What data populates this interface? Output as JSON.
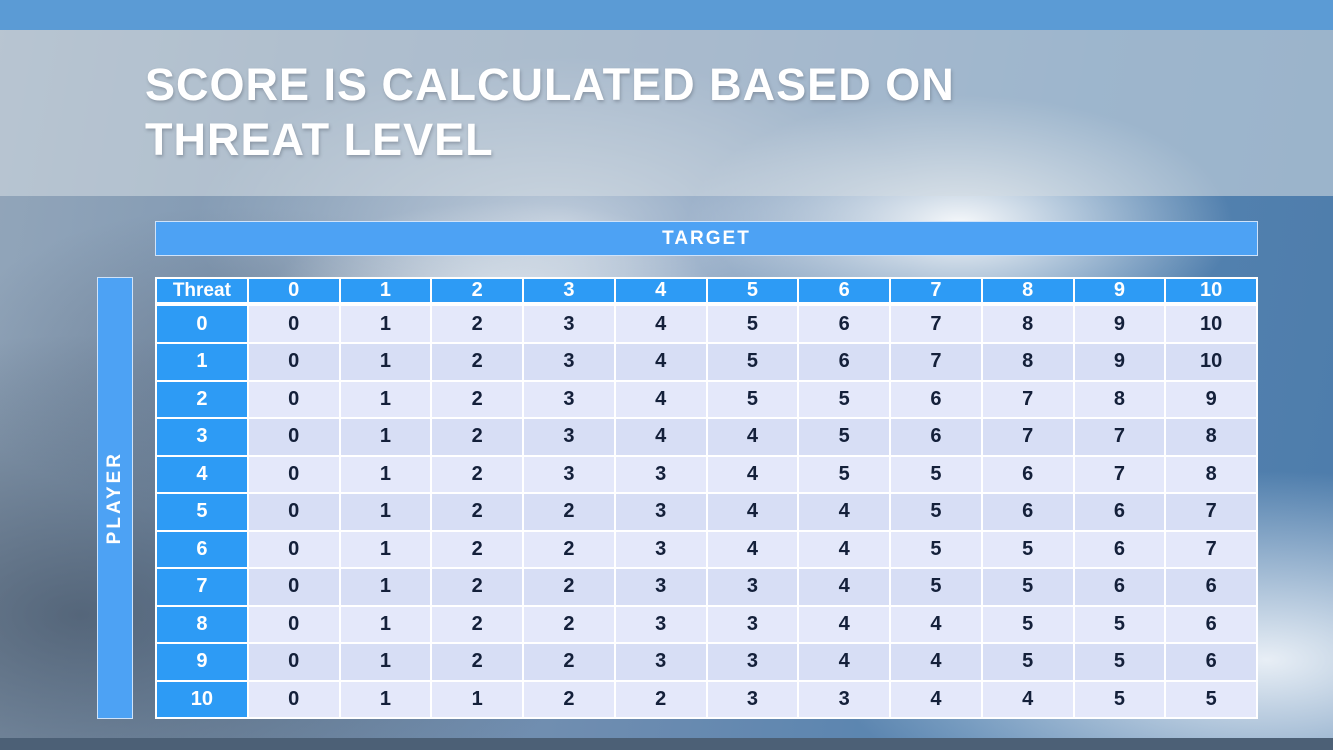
{
  "title": {
    "line1": "SCORE IS CALCULATED BASED ON",
    "line2": "THREAT LEVEL"
  },
  "table": {
    "target_label": "TARGET",
    "player_label": "PLAYER",
    "corner_label": "Threat",
    "column_headers": [
      "0",
      "1",
      "2",
      "3",
      "4",
      "5",
      "6",
      "7",
      "8",
      "9",
      "10"
    ],
    "rows": [
      {
        "threat": "0",
        "values": [
          "0",
          "1",
          "2",
          "3",
          "4",
          "5",
          "6",
          "7",
          "8",
          "9",
          "10"
        ]
      },
      {
        "threat": "1",
        "values": [
          "0",
          "1",
          "2",
          "3",
          "4",
          "5",
          "6",
          "7",
          "8",
          "9",
          "10"
        ]
      },
      {
        "threat": "2",
        "values": [
          "0",
          "1",
          "2",
          "3",
          "4",
          "5",
          "5",
          "6",
          "7",
          "8",
          "9"
        ]
      },
      {
        "threat": "3",
        "values": [
          "0",
          "1",
          "2",
          "3",
          "4",
          "4",
          "5",
          "6",
          "7",
          "7",
          "8"
        ]
      },
      {
        "threat": "4",
        "values": [
          "0",
          "1",
          "2",
          "3",
          "3",
          "4",
          "5",
          "5",
          "6",
          "7",
          "8"
        ]
      },
      {
        "threat": "5",
        "values": [
          "0",
          "1",
          "2",
          "2",
          "3",
          "4",
          "4",
          "5",
          "6",
          "6",
          "7"
        ]
      },
      {
        "threat": "6",
        "values": [
          "0",
          "1",
          "2",
          "2",
          "3",
          "4",
          "4",
          "5",
          "5",
          "6",
          "7"
        ]
      },
      {
        "threat": "7",
        "values": [
          "0",
          "1",
          "2",
          "2",
          "3",
          "3",
          "4",
          "5",
          "5",
          "6",
          "6"
        ]
      },
      {
        "threat": "8",
        "values": [
          "0",
          "1",
          "2",
          "2",
          "3",
          "3",
          "4",
          "4",
          "5",
          "5",
          "6"
        ]
      },
      {
        "threat": "9",
        "values": [
          "0",
          "1",
          "2",
          "2",
          "3",
          "3",
          "4",
          "4",
          "5",
          "5",
          "6"
        ]
      },
      {
        "threat": "10",
        "values": [
          "0",
          "1",
          "1",
          "2",
          "2",
          "3",
          "3",
          "4",
          "4",
          "5",
          "5"
        ]
      }
    ]
  },
  "colors": {
    "top_strip": "#5b9bd5",
    "header_blue": "#2d9bf5",
    "target_bar_blue": "#4da2f4",
    "cell_light": "#e4e8fa",
    "cell_alt": "#d7def5",
    "cell_text": "#14203a",
    "title_text": "#ffffff",
    "title_band": "rgba(211,218,226,0.58)",
    "bottom_strip": "#4c6076"
  }
}
